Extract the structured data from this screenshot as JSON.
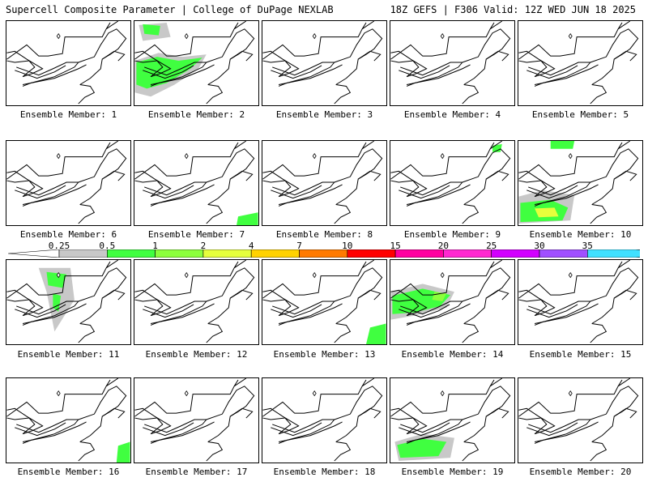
{
  "header": {
    "left_title": "Supercell Composite Parameter | College of DuPage NEXLAB",
    "right_title": "18Z GEFS | F306 Valid: 12Z WED JUN 18 2025"
  },
  "colorbar": {
    "labels": [
      "0.25",
      "0.5",
      "1",
      "2",
      "4",
      "7",
      "10",
      "15",
      "20",
      "25",
      "30",
      "35"
    ],
    "colors": [
      "#c8c8c8",
      "#40ff40",
      "#8cff3c",
      "#e6ff3c",
      "#ffd200",
      "#ff7a00",
      "#ff0000",
      "#ff00a0",
      "#ff28d0",
      "#d200ff",
      "#a050ff",
      "#40e0ff"
    ]
  },
  "members": [
    {
      "label": "Ensemble Member: 1"
    },
    {
      "label": "Ensemble Member: 2"
    },
    {
      "label": "Ensemble Member: 3"
    },
    {
      "label": "Ensemble Member: 4"
    },
    {
      "label": "Ensemble Member: 5"
    },
    {
      "label": "Ensemble Member: 6"
    },
    {
      "label": "Ensemble Member: 7"
    },
    {
      "label": "Ensemble Member: 8"
    },
    {
      "label": "Ensemble Member: 9"
    },
    {
      "label": "Ensemble Member: 10"
    },
    {
      "label": "Ensemble Member: 11"
    },
    {
      "label": "Ensemble Member: 12"
    },
    {
      "label": "Ensemble Member: 13"
    },
    {
      "label": "Ensemble Member: 14"
    },
    {
      "label": "Ensemble Member: 15"
    },
    {
      "label": "Ensemble Member: 16"
    },
    {
      "label": "Ensemble Member: 17"
    },
    {
      "label": "Ensemble Member: 18"
    },
    {
      "label": "Ensemble Member: 19"
    },
    {
      "label": "Ensemble Member: 20"
    }
  ]
}
